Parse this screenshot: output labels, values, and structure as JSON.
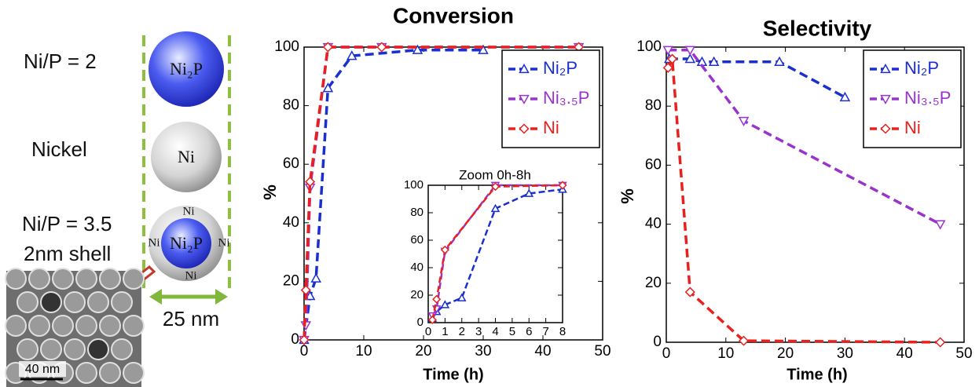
{
  "diagram": {
    "labels": [
      "Ni/P = 2",
      "Nickel",
      "Ni/P = 3.5",
      "2nm shell"
    ],
    "spheres": [
      "Ni₂P",
      "Ni",
      "Ni₂P"
    ],
    "shell_label": "Ni",
    "dimension": "25 nm",
    "scale_bar": "40 nm"
  },
  "chart_data": [
    {
      "type": "line",
      "title": "Conversion",
      "x_label": "Time (h)",
      "y_label": "%",
      "xlim": [
        0,
        50
      ],
      "xticks": [
        0,
        10,
        20,
        30,
        40,
        50
      ],
      "ylim": [
        0,
        100
      ],
      "yticks": [
        0,
        20,
        40,
        60,
        80,
        100
      ],
      "legend": "upper right",
      "series": [
        {
          "name": "Ni₂P",
          "color": "#1a2fd0",
          "marker": "triangle-up",
          "x": [
            0,
            1,
            2,
            4,
            8,
            19,
            30
          ],
          "values": [
            0,
            15,
            21,
            86,
            97,
            99,
            99
          ]
        },
        {
          "name": "Ni₃.₅P",
          "color": "#9933cc",
          "marker": "triangle-down",
          "x": [
            0,
            0.3,
            1,
            4,
            13,
            46
          ],
          "values": [
            0,
            5,
            52,
            100,
            100,
            100
          ]
        },
        {
          "name": "Ni",
          "color": "#e8201e",
          "marker": "diamond",
          "x": [
            0,
            0.3,
            1,
            4,
            13,
            46
          ],
          "values": [
            0,
            17,
            54,
            100,
            100,
            100
          ]
        }
      ]
    },
    {
      "type": "line",
      "title": "Zoom 0h-8h",
      "xlim": [
        0,
        8
      ],
      "xticks": [
        0,
        1,
        2,
        3,
        4,
        5,
        6,
        7,
        8
      ],
      "ylim": [
        0,
        100
      ],
      "yticks": [
        0,
        20,
        40,
        60,
        80,
        100
      ],
      "series": [
        {
          "color": "#1a2fd0",
          "marker": "triangle-up",
          "x": [
            0.25,
            0.5,
            1,
            2,
            4,
            6,
            8
          ],
          "values": [
            3,
            8,
            13,
            18,
            83,
            94,
            97
          ]
        },
        {
          "color": "#9933cc",
          "marker": "triangle-down",
          "x": [
            0.25,
            0.5,
            1,
            4,
            8
          ],
          "values": [
            5,
            10,
            52,
            100,
            100
          ]
        },
        {
          "color": "#e8201e",
          "marker": "diamond",
          "x": [
            0.25,
            0.5,
            1,
            4,
            8
          ],
          "values": [
            2,
            17,
            53,
            99,
            100
          ]
        }
      ]
    },
    {
      "type": "line",
      "title": "Selectivity",
      "x_label": "Time (h)",
      "y_label": "%",
      "xlim": [
        0,
        50
      ],
      "xticks": [
        0,
        10,
        20,
        30,
        40,
        50
      ],
      "ylim": [
        0,
        100
      ],
      "yticks": [
        0,
        20,
        40,
        60,
        80,
        100
      ],
      "legend": "upper right",
      "series": [
        {
          "name": "Ni₂P",
          "color": "#1a2fd0",
          "marker": "triangle-up",
          "x": [
            0.5,
            4,
            6,
            8,
            19,
            30
          ],
          "values": [
            96,
            96,
            95,
            95,
            95,
            83
          ]
        },
        {
          "name": "Ni₃.₅P",
          "color": "#9933cc",
          "marker": "triangle-down",
          "x": [
            0.3,
            4,
            13,
            46
          ],
          "values": [
            99,
            99,
            75,
            40
          ]
        },
        {
          "name": "Ni",
          "color": "#e8201e",
          "marker": "diamond",
          "x": [
            0.3,
            1,
            4,
            13,
            46
          ],
          "values": [
            93,
            96,
            17,
            0.5,
            0
          ]
        }
      ]
    }
  ]
}
